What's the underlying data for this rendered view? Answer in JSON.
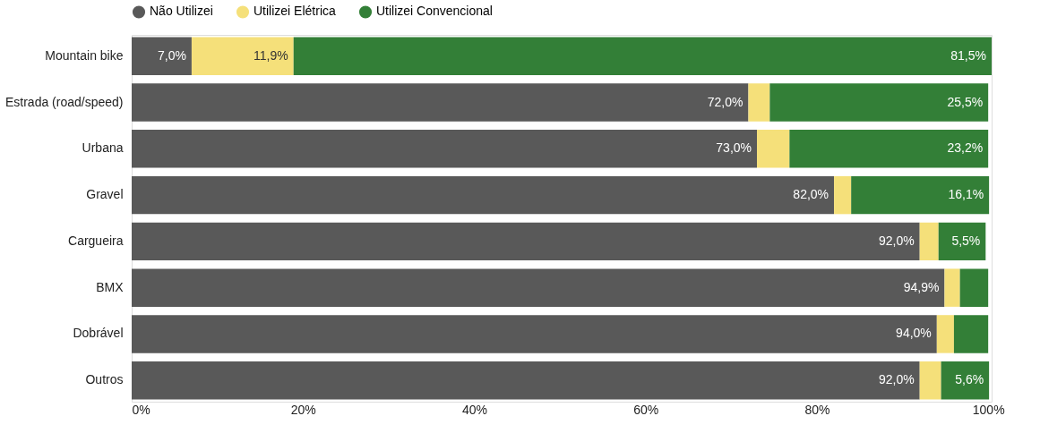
{
  "chart_data": {
    "type": "bar",
    "orientation": "horizontal",
    "stacked": true,
    "categories": [
      "Mountain bike",
      "Estrada (road/speed)",
      "Urbana",
      "Gravel",
      "Cargueira",
      "BMX",
      "Dobrável",
      "Outros"
    ],
    "series": [
      {
        "name": "Não Utilizei",
        "color": "#595959",
        "values": [
          7.0,
          72.0,
          73.0,
          82.0,
          92.0,
          94.9,
          94.0,
          92.0
        ],
        "value_labels": [
          "7,0%",
          "72,0%",
          "73,0%",
          "82,0%",
          "92,0%",
          "94,9%",
          "94,0%",
          "92,0%"
        ]
      },
      {
        "name": "Utilizei Elétrica",
        "color": "#f5e07a",
        "values": [
          11.9,
          2.5,
          3.8,
          2.0,
          2.2,
          1.8,
          2.0,
          2.5
        ],
        "value_labels": [
          "11,9%",
          null,
          null,
          null,
          null,
          null,
          null,
          null
        ]
      },
      {
        "name": "Utilizei Convencional",
        "color": "#337f37",
        "values": [
          81.5,
          25.5,
          23.2,
          16.1,
          5.5,
          3.3,
          4.0,
          5.6
        ],
        "value_labels": [
          "81,5%",
          "25,5%",
          "23,2%",
          "16,1%",
          "5,5%",
          null,
          null,
          "5,6%"
        ]
      }
    ],
    "xlim": [
      0,
      100.4
    ],
    "xticks": [
      {
        "value": 0,
        "label": "0%"
      },
      {
        "value": 20,
        "label": "20%"
      },
      {
        "value": 40,
        "label": "40%"
      },
      {
        "value": 60,
        "label": "60%"
      },
      {
        "value": 80,
        "label": "80%"
      },
      {
        "value": 100,
        "label": "100%"
      }
    ],
    "legend": "top",
    "grid": false
  }
}
